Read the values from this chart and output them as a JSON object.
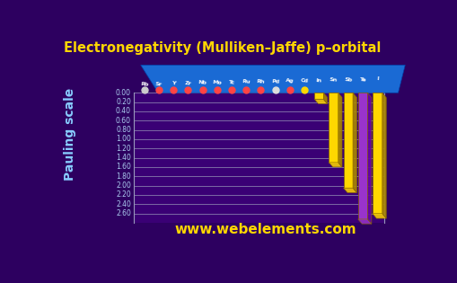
{
  "title": "Electronegativity (Mulliken–Jaffe) p–orbital",
  "ylabel": "Pauling scale",
  "watermark": "www.webelements.com",
  "elements": [
    "Rb",
    "Sr",
    "Y",
    "Zr",
    "Nb",
    "Mo",
    "Tc",
    "Ru",
    "Rh",
    "Pd",
    "Ag",
    "Cd",
    "In",
    "Sn",
    "Sb",
    "Te",
    "I"
  ],
  "values": [
    0.0,
    0.0,
    0.0,
    0.0,
    0.0,
    0.0,
    0.0,
    0.0,
    0.0,
    0.0,
    0.0,
    0.0,
    0.14,
    1.5,
    2.05,
    2.72,
    2.6
  ],
  "bar_colors": [
    "#FFD700",
    "#FFD700",
    "#FFD700",
    "#FFD700",
    "#FFD700",
    "#FFD700",
    "#FFD700",
    "#FFD700",
    "#FFD700",
    "#FFD700",
    "#FFD700",
    "#FFD700",
    "#FFD700",
    "#FFD700",
    "#FFD700",
    "#9933CC",
    "#FFD700"
  ],
  "dot_colors": [
    "#CCCCCC",
    "#FF4444",
    "#FF4444",
    "#FF4444",
    "#FF4444",
    "#FF4444",
    "#FF4444",
    "#FF4444",
    "#FF4444",
    "#DDDDDD",
    "#FF4444",
    "#FFD700",
    null,
    null,
    null,
    null,
    null
  ],
  "yticks": [
    0.0,
    0.2,
    0.4,
    0.6,
    0.8,
    1.0,
    1.2,
    1.4,
    1.6,
    1.8,
    2.0,
    2.2,
    2.4,
    2.6
  ],
  "ymax": 2.8,
  "bg_color": "#2d0060",
  "title_color": "#FFD700",
  "axis_label_color": "#88CCFF",
  "tick_label_color": "#AACCEE",
  "floor_color": "#1a6ad4",
  "floor_label_color": "#FFFFFF",
  "grid_color": "#9999BB",
  "watermark_color": "#FFD700"
}
